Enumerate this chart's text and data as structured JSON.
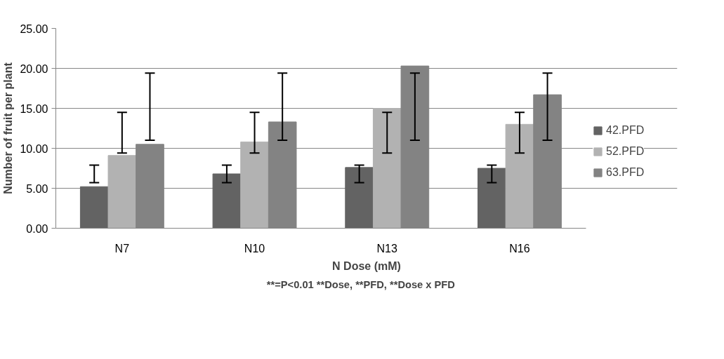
{
  "chart_data": {
    "type": "bar",
    "xlabel": "N Dose (mM)",
    "ylabel": "Number of fruit per plant",
    "annotations": [
      "**=P<0.01     **Dose, **PFD, **Dose x PFD"
    ],
    "categories": [
      "N7",
      "N10",
      "N13",
      "N16"
    ],
    "series": [
      {
        "name": "42.PFD",
        "color": "#636363",
        "values": [
          5.2,
          6.8,
          7.6,
          7.5
        ],
        "errors": [
          [
            5.7,
            7.9
          ],
          [
            5.7,
            7.9
          ],
          [
            5.7,
            7.9
          ],
          [
            5.7,
            7.9
          ]
        ]
      },
      {
        "name": "52.PFD",
        "color": "#b2b2b2",
        "values": [
          9.1,
          10.8,
          15.0,
          13.0
        ],
        "errors": [
          [
            9.4,
            14.5
          ],
          [
            9.4,
            14.5
          ],
          [
            9.4,
            14.5
          ],
          [
            9.4,
            14.5
          ]
        ]
      },
      {
        "name": "63.PFD",
        "color": "#838383",
        "values": [
          10.5,
          13.3,
          20.3,
          16.7
        ],
        "errors": [
          [
            11.0,
            19.4
          ],
          [
            11.0,
            19.4
          ],
          [
            11.0,
            19.4
          ],
          [
            11.0,
            19.4
          ]
        ]
      }
    ],
    "ylim": [
      0,
      25
    ],
    "yticks": [
      {
        "value": 0,
        "label": "0.00"
      },
      {
        "value": 5,
        "label": "5.00"
      },
      {
        "value": 10,
        "label": "10.00"
      },
      {
        "value": 15,
        "label": "15.00"
      },
      {
        "value": 20,
        "label": "20.00"
      },
      {
        "value": 25,
        "label": "25.00"
      }
    ],
    "grid": "y",
    "legend": "right"
  }
}
